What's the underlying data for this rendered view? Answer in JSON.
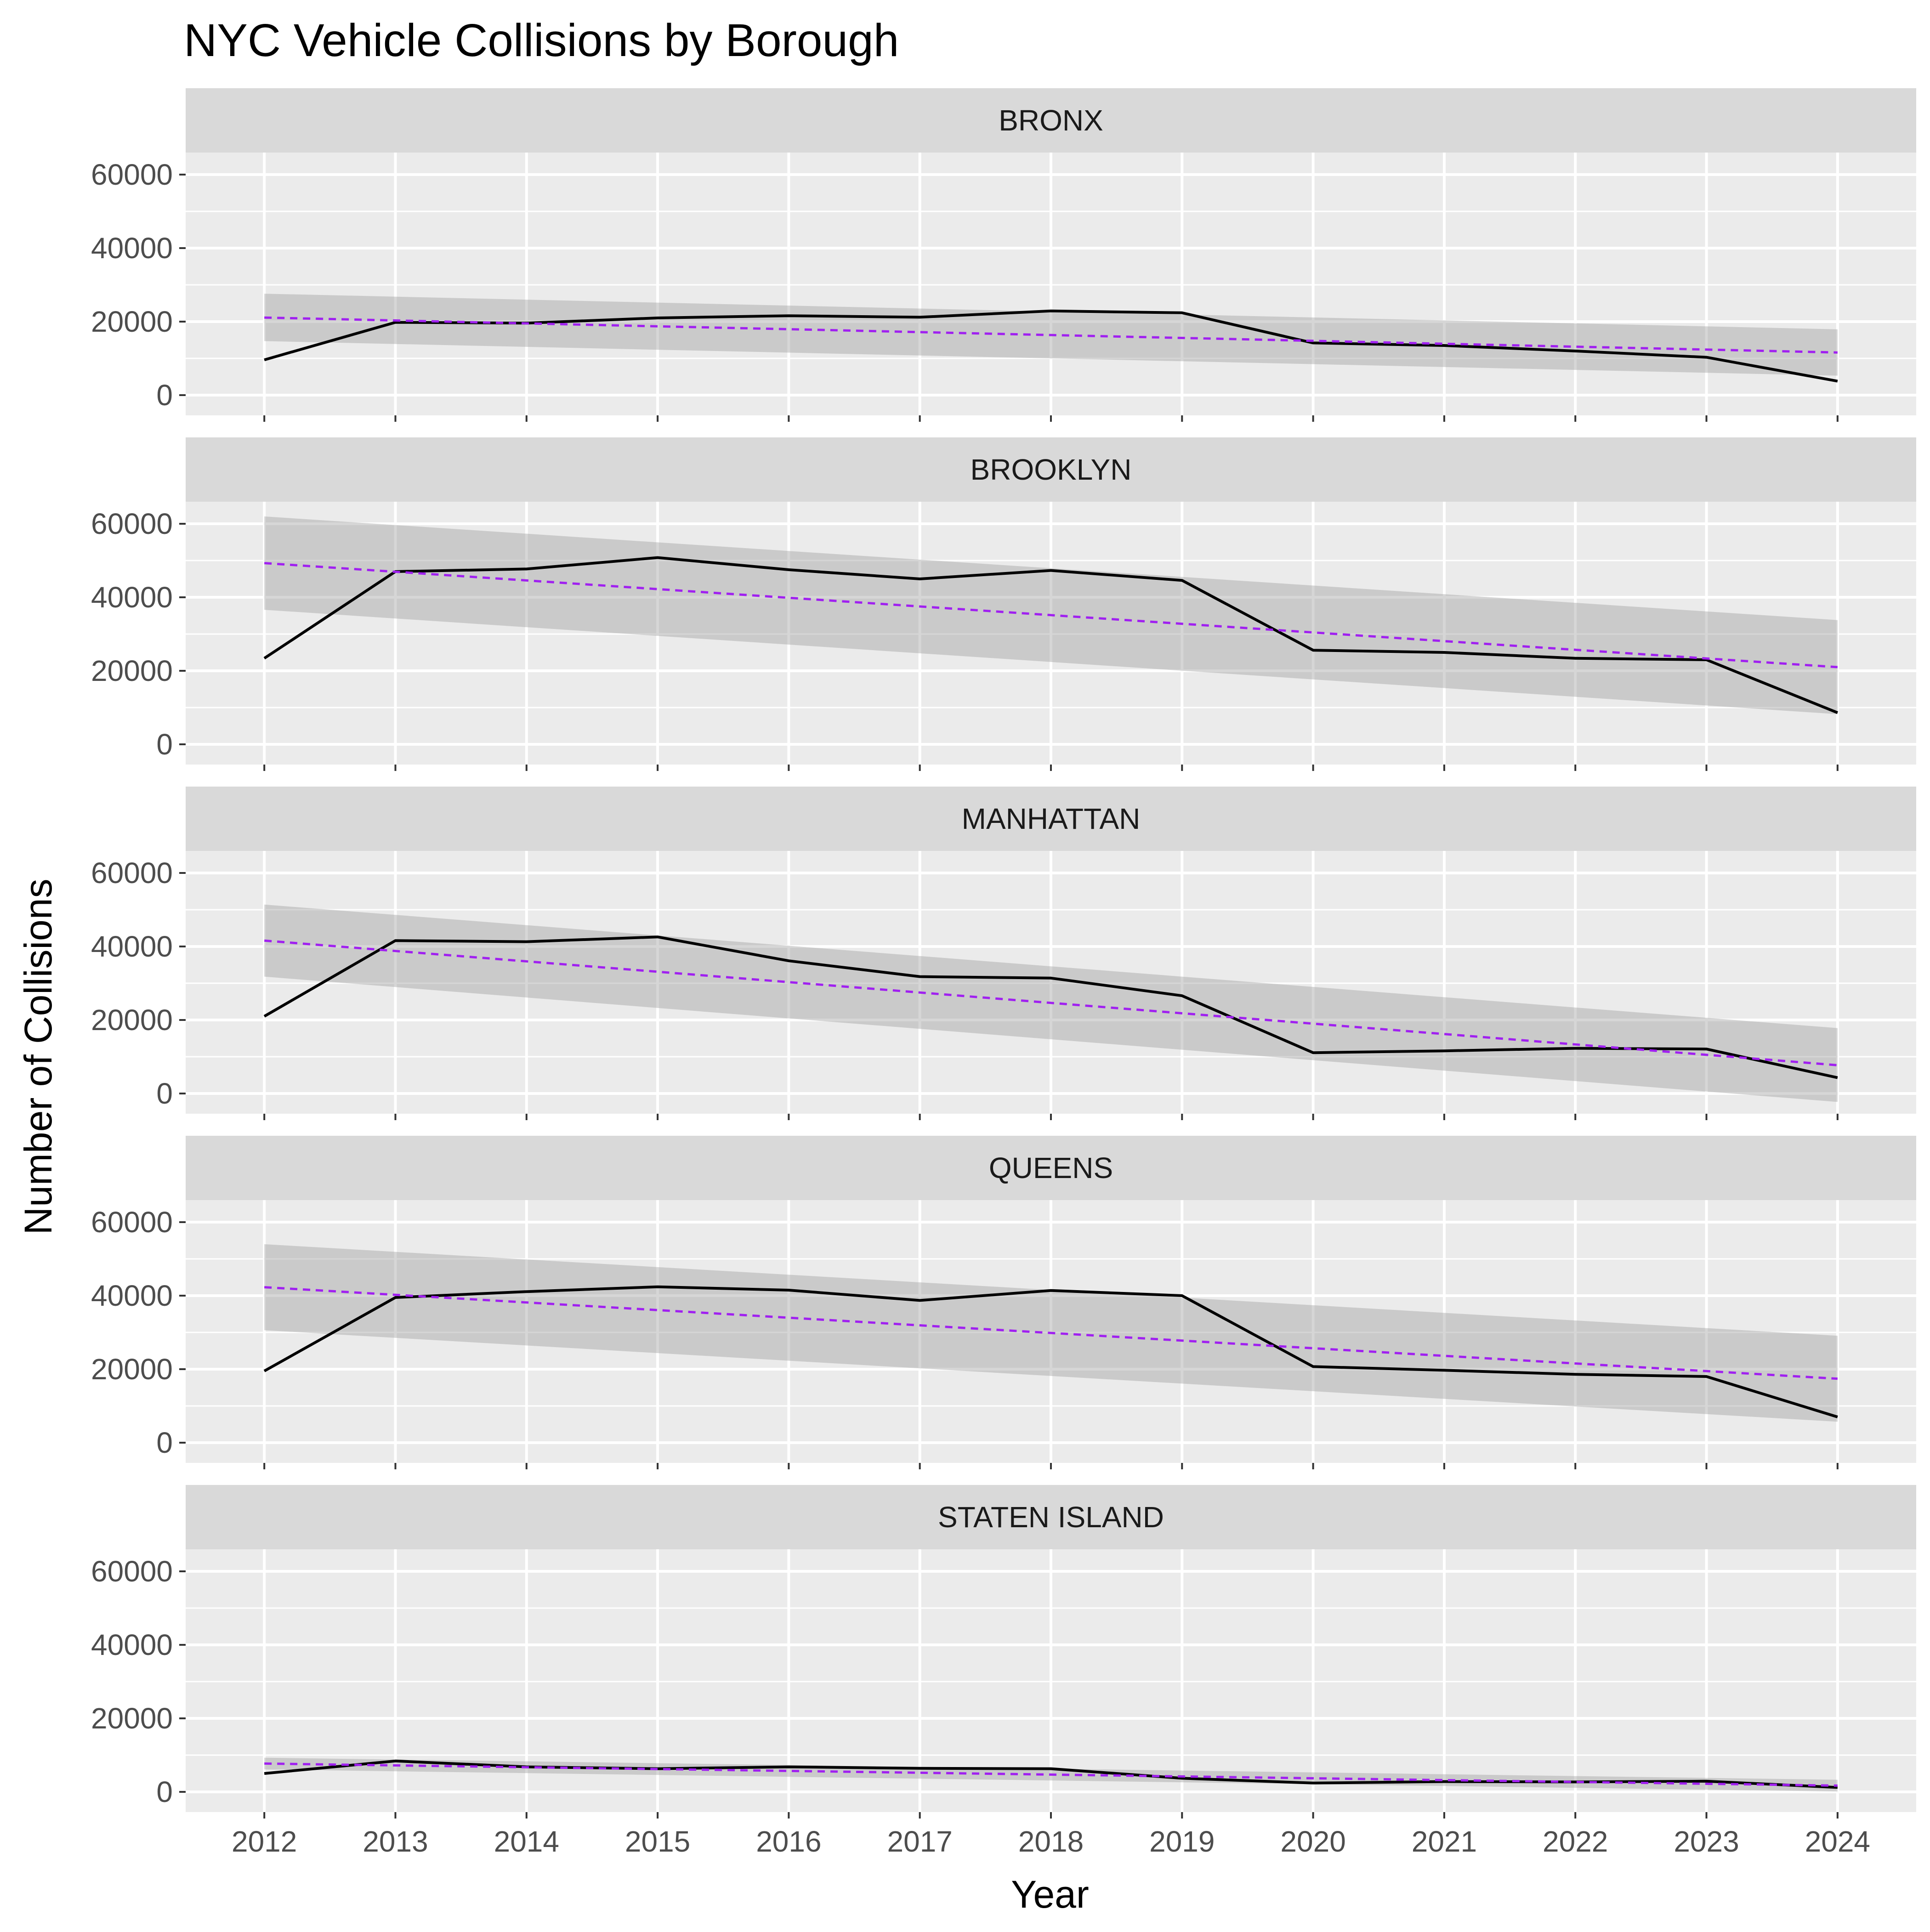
{
  "chart_data": {
    "type": "line",
    "title": "NYC Vehicle Collisions by Borough",
    "xlabel": "Year",
    "ylabel": "Number of Collisions",
    "x": [
      2012,
      2013,
      2014,
      2015,
      2016,
      2017,
      2018,
      2019,
      2020,
      2021,
      2022,
      2023,
      2024
    ],
    "xlim": [
      2011.4,
      2024.6
    ],
    "ylim": [
      -5500,
      66000
    ],
    "y_ticks": [
      0,
      20000,
      40000,
      60000
    ],
    "grid": true,
    "legend": "none",
    "colors": {
      "line": "#000000",
      "trend": "#a020f0",
      "ribbon": "#999999",
      "panel": "#ebebeb",
      "strip": "#d9d9d9",
      "grid": "#ffffff"
    },
    "facets": [
      {
        "name": "BRONX",
        "values": [
          9600,
          19800,
          19600,
          21000,
          21600,
          21200,
          22900,
          22400,
          14200,
          13500,
          12000,
          10300,
          3800
        ],
        "trend": [
          21100,
          11600
        ],
        "ribbon_upper": [
          27600,
          17900
        ],
        "ribbon_lower": [
          14700,
          5300
        ]
      },
      {
        "name": "BROOKLYN",
        "values": [
          23400,
          47000,
          47700,
          50800,
          47500,
          45000,
          47300,
          44600,
          25600,
          25000,
          23400,
          23000,
          8600
        ],
        "trend": [
          49300,
          21000
        ],
        "ribbon_upper": [
          62000,
          33800
        ],
        "ribbon_lower": [
          36600,
          8200
        ]
      },
      {
        "name": "MANHATTAN",
        "values": [
          21000,
          41600,
          41300,
          42600,
          36100,
          31800,
          31400,
          26600,
          11100,
          11600,
          12300,
          12100,
          4300
        ],
        "trend": [
          41600,
          7700
        ],
        "ribbon_upper": [
          51400,
          17800
        ],
        "ribbon_lower": [
          31800,
          -2300
        ]
      },
      {
        "name": "QUEENS",
        "values": [
          19500,
          39500,
          41100,
          42400,
          41500,
          38700,
          41400,
          40000,
          20700,
          19700,
          18600,
          18000,
          7000
        ],
        "trend": [
          42300,
          17400
        ],
        "ribbon_upper": [
          54000,
          29100
        ],
        "ribbon_lower": [
          30600,
          5700
        ]
      },
      {
        "name": "STATEN ISLAND",
        "values": [
          5000,
          8400,
          6800,
          6300,
          6800,
          6400,
          6300,
          3700,
          2400,
          2800,
          2700,
          2900,
          1200
        ],
        "trend": [
          7700,
          1700
        ],
        "ribbon_upper": [
          9300,
          3300
        ],
        "ribbon_lower": [
          6100,
          100
        ]
      }
    ]
  }
}
